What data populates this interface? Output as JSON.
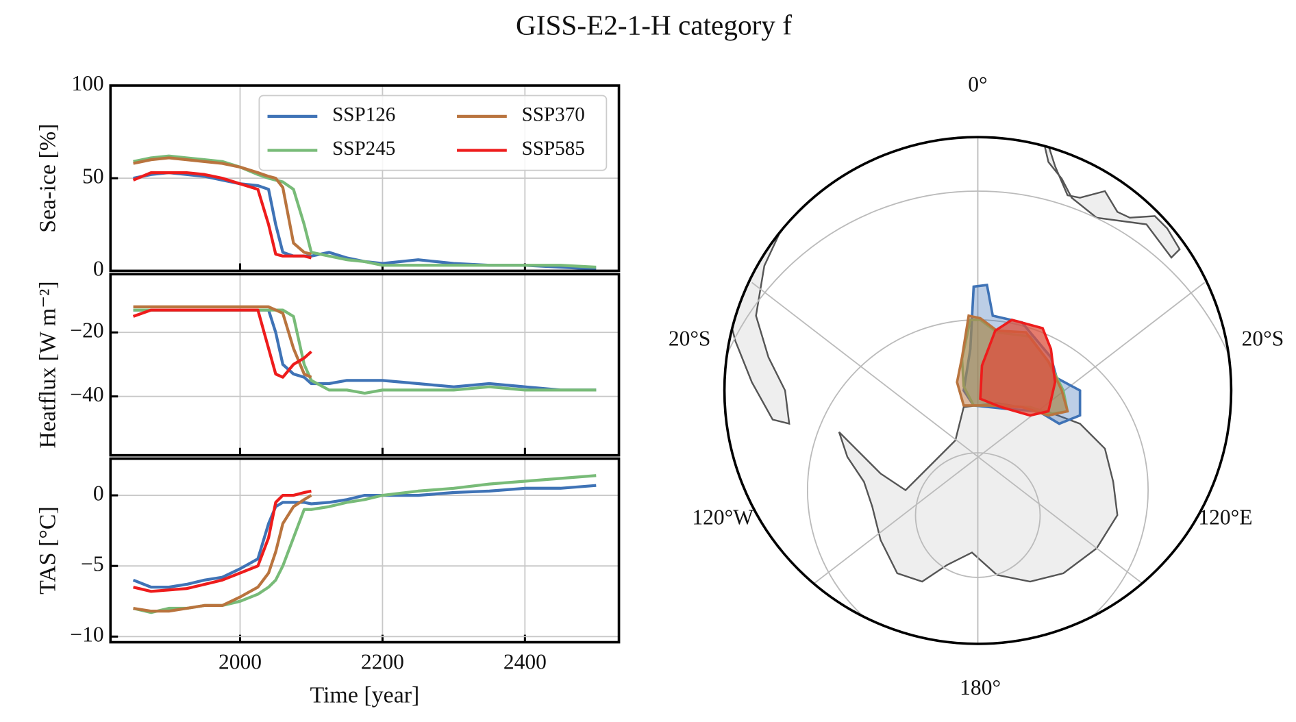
{
  "title": "GISS-E2-1-H category f",
  "chart_data": [
    {
      "type": "line",
      "ylabel": "Sea-ice [%]",
      "x": [
        1850,
        1875,
        1900,
        1925,
        1950,
        1975,
        2000,
        2025,
        2040,
        2050,
        2060,
        2075,
        2090,
        2100,
        2125,
        2150,
        2175,
        2200,
        2250,
        2300,
        2350,
        2400,
        2450,
        2500
      ],
      "ylim": [
        0,
        100
      ],
      "yticks": [
        0,
        50,
        100
      ],
      "grid": true,
      "legend": "upper right",
      "series": [
        {
          "name": "SSP126",
          "color": "#3f73b6",
          "values": [
            50,
            52,
            53,
            52,
            51,
            49,
            47,
            46,
            44,
            25,
            10,
            8,
            8,
            8,
            10,
            7,
            5,
            4,
            6,
            4,
            3,
            3,
            2,
            1
          ]
        },
        {
          "name": "SSP245",
          "color": "#78bb78",
          "values": [
            59,
            61,
            62,
            61,
            60,
            59,
            56,
            52,
            50,
            49,
            48,
            44,
            25,
            10,
            8,
            6,
            5,
            3,
            3,
            3,
            3,
            3,
            3,
            2
          ]
        },
        {
          "name": "SSP370",
          "color": "#b9743e",
          "values": [
            58,
            60,
            61,
            60,
            59,
            58,
            56,
            53,
            51,
            50,
            45,
            15,
            10,
            9,
            null,
            null,
            null,
            null,
            null,
            null,
            null,
            null,
            null,
            null
          ]
        },
        {
          "name": "SSP585",
          "color": "#ee1c1c",
          "values": [
            49,
            53,
            53,
            53,
            52,
            50,
            47,
            44,
            25,
            9,
            8,
            8,
            8,
            7,
            null,
            null,
            null,
            null,
            null,
            null,
            null,
            null,
            null,
            null
          ]
        }
      ]
    },
    {
      "type": "line",
      "ylabel": "Heatflux [W m⁻²]",
      "x": [
        1850,
        1875,
        1900,
        1925,
        1950,
        1975,
        2000,
        2025,
        2040,
        2050,
        2060,
        2075,
        2090,
        2100,
        2125,
        2150,
        2175,
        2200,
        2250,
        2300,
        2350,
        2400,
        2450,
        2500
      ],
      "ylim": [
        -58.4,
        -1.8
      ],
      "yticks": [
        {
          "value": -40,
          "label": "−40"
        },
        {
          "value": -20,
          "label": "−20"
        }
      ],
      "grid": true,
      "series": [
        {
          "name": "SSP126",
          "color": "#3f73b6",
          "values": [
            -13,
            -13,
            -13,
            -13,
            -13,
            -13,
            -13,
            -13,
            -13,
            -20,
            -30,
            -33,
            -34,
            -36,
            -36,
            -35,
            -35,
            -35,
            -36,
            -37,
            -36,
            -37,
            -38,
            -38
          ]
        },
        {
          "name": "SSP245",
          "color": "#78bb78",
          "values": [
            -13,
            -13,
            -13,
            -13,
            -13,
            -13,
            -13,
            -13,
            -13,
            -13,
            -13,
            -15,
            -30,
            -35,
            -38,
            -38,
            -39,
            -38,
            -38,
            -38,
            -37,
            -38,
            -38,
            -38
          ]
        },
        {
          "name": "SSP370",
          "color": "#b9743e",
          "values": [
            -12,
            -12,
            -12,
            -12,
            -12,
            -12,
            -12,
            -12,
            -12,
            -13,
            -14,
            -25,
            -33,
            -34,
            null,
            null,
            null,
            null,
            null,
            null,
            null,
            null,
            null,
            null
          ]
        },
        {
          "name": "SSP585",
          "color": "#ee1c1c",
          "values": [
            -15,
            -13,
            -13,
            -13,
            -13,
            -13,
            -13,
            -13,
            -25,
            -33,
            -34,
            -30,
            -28,
            -26,
            null,
            null,
            null,
            null,
            null,
            null,
            null,
            null,
            null,
            null
          ]
        }
      ]
    },
    {
      "type": "line",
      "ylabel": "TAS [°C]",
      "xlabel": "Time [year]",
      "x": [
        1850,
        1875,
        1900,
        1925,
        1950,
        1975,
        2000,
        2025,
        2040,
        2050,
        2060,
        2075,
        2090,
        2100,
        2125,
        2150,
        2175,
        2200,
        2250,
        2300,
        2350,
        2400,
        2450,
        2500
      ],
      "xlim": [
        1818,
        2532
      ],
      "xticks": [
        2000,
        2200,
        2400
      ],
      "ylim": [
        -10.4,
        2.6
      ],
      "yticks": [
        {
          "value": -10,
          "label": "−10"
        },
        {
          "value": -5,
          "label": "−5"
        },
        0
      ],
      "grid": true,
      "series": [
        {
          "name": "SSP126",
          "color": "#3f73b6",
          "values": [
            -6,
            -6.5,
            -6.5,
            -6.3,
            -6,
            -5.8,
            -5.2,
            -4.5,
            -2,
            -0.8,
            -0.5,
            -0.5,
            -0.5,
            -0.6,
            -0.5,
            -0.3,
            0,
            0,
            0,
            0.2,
            0.3,
            0.5,
            0.5,
            0.7
          ]
        },
        {
          "name": "SSP245",
          "color": "#78bb78",
          "values": [
            -8,
            -8.3,
            -8,
            -8,
            -7.8,
            -7.8,
            -7.5,
            -7,
            -6.5,
            -6,
            -5,
            -3,
            -1,
            -1,
            -0.8,
            -0.5,
            -0.3,
            0,
            0.3,
            0.5,
            0.8,
            1,
            1.2,
            1.4
          ]
        },
        {
          "name": "SSP370",
          "color": "#b9743e",
          "values": [
            -8,
            -8.2,
            -8.2,
            -8,
            -7.8,
            -7.8,
            -7.2,
            -6.5,
            -5.5,
            -4,
            -2,
            -0.8,
            -0.3,
            0,
            null,
            null,
            null,
            null,
            null,
            null,
            null,
            null,
            null,
            null
          ]
        },
        {
          "name": "SSP585",
          "color": "#ee1c1c",
          "values": [
            -6.5,
            -6.8,
            -6.7,
            -6.6,
            -6.3,
            -6,
            -5.5,
            -5,
            -3,
            -0.5,
            0,
            0,
            0.2,
            0.3,
            null,
            null,
            null,
            null,
            null,
            null,
            null,
            null,
            null,
            null
          ]
        }
      ]
    }
  ],
  "map": {
    "labels": [
      "0°",
      "20°S",
      "20°S",
      "120°W",
      "120°E",
      "180°"
    ]
  }
}
